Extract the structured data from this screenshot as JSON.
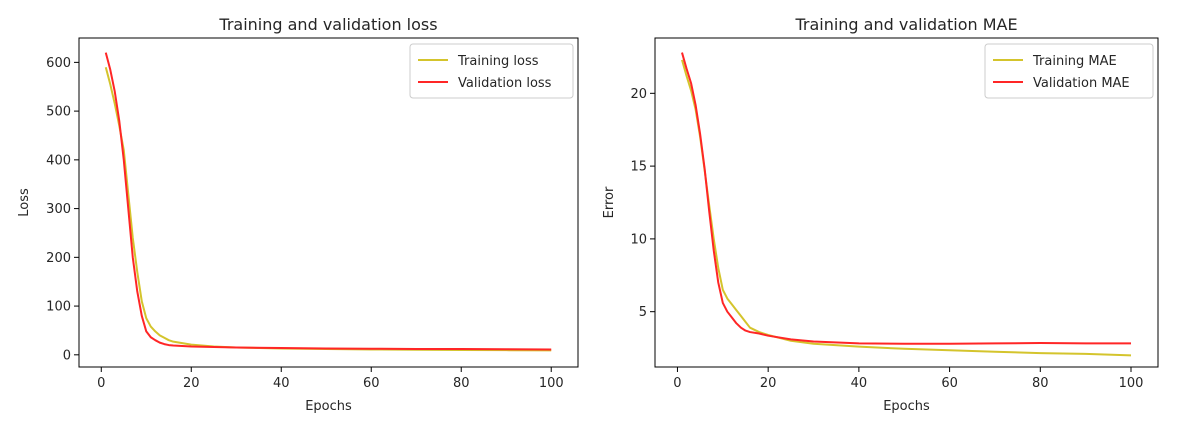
{
  "chart_data": [
    {
      "type": "line",
      "title": "Training and validation loss",
      "xlabel": "Epochs",
      "ylabel": "Loss",
      "xlim": [
        -4.95,
        105.95
      ],
      "ylim": [
        -25,
        650
      ],
      "xticks": [
        0,
        20,
        40,
        60,
        80,
        100
      ],
      "yticks": [
        0,
        100,
        200,
        300,
        400,
        500,
        600
      ],
      "grid": false,
      "legend_position": "upper right",
      "series": [
        {
          "name": "Training loss",
          "color": "#d4c42c",
          "points": [
            [
              1,
              590
            ],
            [
              2,
              555
            ],
            [
              3,
              515
            ],
            [
              4,
              470
            ],
            [
              5,
              420
            ],
            [
              6,
              330
            ],
            [
              7,
              240
            ],
            [
              8,
              170
            ],
            [
              9,
              110
            ],
            [
              10,
              75
            ],
            [
              11,
              58
            ],
            [
              12,
              48
            ],
            [
              13,
              40
            ],
            [
              14,
              35
            ],
            [
              15,
              30
            ],
            [
              16,
              27
            ],
            [
              18,
              24
            ],
            [
              20,
              21
            ],
            [
              25,
              17
            ],
            [
              30,
              15
            ],
            [
              40,
              13
            ],
            [
              50,
              12
            ],
            [
              60,
              11
            ],
            [
              70,
              10.5
            ],
            [
              80,
              10
            ],
            [
              90,
              9.5
            ],
            [
              100,
              9
            ]
          ]
        },
        {
          "name": "Validation loss",
          "color": "#ff2626",
          "points": [
            [
              1,
              620
            ],
            [
              2,
              585
            ],
            [
              3,
              540
            ],
            [
              4,
              480
            ],
            [
              5,
              400
            ],
            [
              6,
              300
            ],
            [
              7,
              200
            ],
            [
              8,
              130
            ],
            [
              9,
              80
            ],
            [
              10,
              48
            ],
            [
              11,
              36
            ],
            [
              12,
              30
            ],
            [
              13,
              25
            ],
            [
              14,
              22
            ],
            [
              15,
              20
            ],
            [
              16,
              19
            ],
            [
              18,
              18
            ],
            [
              20,
              17
            ],
            [
              25,
              16
            ],
            [
              30,
              15
            ],
            [
              40,
              14
            ],
            [
              50,
              13
            ],
            [
              60,
              12.5
            ],
            [
              70,
              12
            ],
            [
              80,
              12
            ],
            [
              90,
              11.5
            ],
            [
              100,
              11
            ]
          ]
        }
      ]
    },
    {
      "type": "line",
      "title": "Training and validation MAE",
      "xlabel": "Epochs",
      "ylabel": "Error",
      "xlim": [
        -4.95,
        105.95
      ],
      "ylim": [
        1.2,
        23.8
      ],
      "xticks": [
        0,
        20,
        40,
        60,
        80,
        100
      ],
      "yticks": [
        5,
        10,
        15,
        20
      ],
      "grid": false,
      "legend_position": "upper right",
      "series": [
        {
          "name": "Training MAE",
          "color": "#d4c42c",
          "points": [
            [
              1,
              22.3
            ],
            [
              2,
              21.2
            ],
            [
              3,
              20.2
            ],
            [
              4,
              18.9
            ],
            [
              5,
              17.0
            ],
            [
              6,
              14.7
            ],
            [
              7,
              12.3
            ],
            [
              8,
              10.0
            ],
            [
              9,
              8.0
            ],
            [
              10,
              6.5
            ],
            [
              11,
              5.9
            ],
            [
              12,
              5.5
            ],
            [
              13,
              5.1
            ],
            [
              14,
              4.7
            ],
            [
              15,
              4.3
            ],
            [
              16,
              3.9
            ],
            [
              18,
              3.6
            ],
            [
              20,
              3.4
            ],
            [
              25,
              3.0
            ],
            [
              30,
              2.8
            ],
            [
              40,
              2.6
            ],
            [
              50,
              2.45
            ],
            [
              60,
              2.35
            ],
            [
              70,
              2.25
            ],
            [
              80,
              2.15
            ],
            [
              90,
              2.1
            ],
            [
              100,
              2.0
            ]
          ]
        },
        {
          "name": "Validation MAE",
          "color": "#ff2626",
          "points": [
            [
              1,
              22.8
            ],
            [
              2,
              21.7
            ],
            [
              3,
              20.7
            ],
            [
              4,
              19.2
            ],
            [
              5,
              17.2
            ],
            [
              6,
              14.8
            ],
            [
              7,
              11.9
            ],
            [
              8,
              9.2
            ],
            [
              9,
              7.0
            ],
            [
              10,
              5.6
            ],
            [
              11,
              5.0
            ],
            [
              12,
              4.6
            ],
            [
              13,
              4.2
            ],
            [
              14,
              3.9
            ],
            [
              15,
              3.7
            ],
            [
              16,
              3.6
            ],
            [
              18,
              3.5
            ],
            [
              20,
              3.35
            ],
            [
              25,
              3.1
            ],
            [
              30,
              2.95
            ],
            [
              40,
              2.82
            ],
            [
              50,
              2.8
            ],
            [
              60,
              2.8
            ],
            [
              70,
              2.82
            ],
            [
              80,
              2.85
            ],
            [
              90,
              2.82
            ],
            [
              100,
              2.82
            ]
          ]
        }
      ]
    }
  ]
}
